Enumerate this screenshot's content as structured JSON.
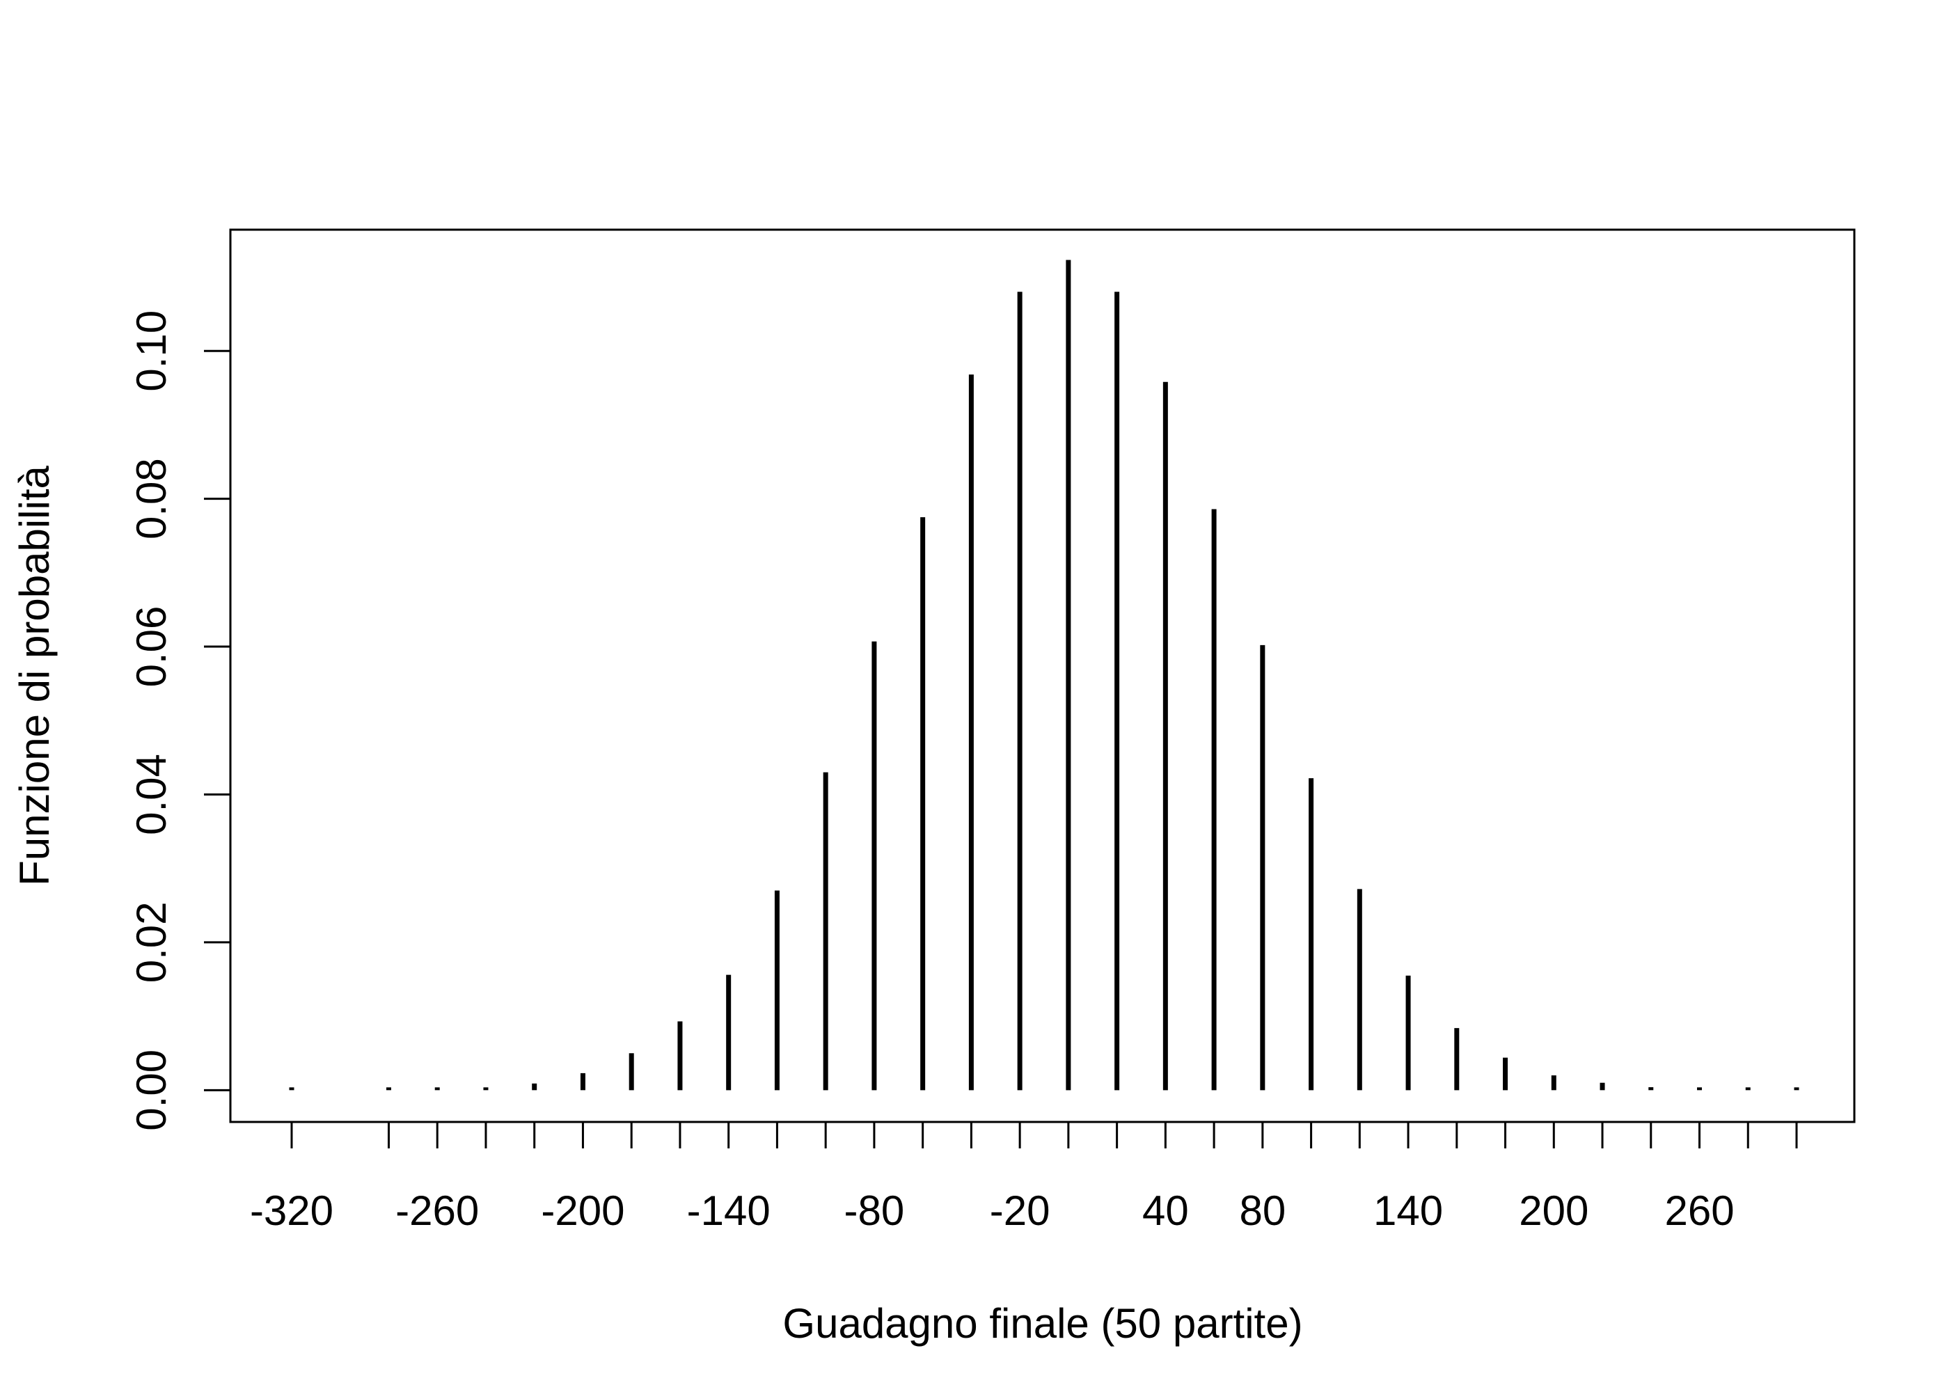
{
  "chart_data": {
    "type": "bar",
    "title": "",
    "xlabel": "Guadagno finale (50 partite)",
    "ylabel": "Funzione di probabilità",
    "x": [
      -320,
      -280,
      -260,
      -240,
      -220,
      -200,
      -180,
      -160,
      -140,
      -120,
      -100,
      -80,
      -60,
      -40,
      -20,
      0,
      20,
      40,
      60,
      80,
      100,
      120,
      140,
      160,
      180,
      200,
      220,
      240,
      260,
      280,
      300
    ],
    "values": [
      5e-05,
      5e-05,
      0.0001,
      0.0003,
      0.0009,
      0.0023,
      0.005,
      0.0093,
      0.0156,
      0.027,
      0.043,
      0.0607,
      0.0775,
      0.0968,
      0.108,
      0.1123,
      0.108,
      0.0958,
      0.0786,
      0.0602,
      0.0422,
      0.0272,
      0.0155,
      0.0084,
      0.0044,
      0.002,
      0.001,
      0.0004,
      0.0001,
      5e-05,
      5e-05
    ],
    "x_tick_labels": [
      "-320",
      "-260",
      "-200",
      "-140",
      "-80",
      "-20",
      "40",
      "80",
      "140",
      "200",
      "260"
    ],
    "x_tick_label_values": [
      -320,
      -260,
      -200,
      -140,
      -80,
      -20,
      40,
      80,
      140,
      200,
      260
    ],
    "y_ticks": [
      0.0,
      0.02,
      0.04,
      0.06,
      0.08,
      0.1
    ],
    "y_tick_labels": [
      "0.00",
      "0.02",
      "0.04",
      "0.06",
      "0.08",
      "0.10"
    ],
    "ylim": [
      -0.0043,
      0.1164
    ],
    "grid": false,
    "bar_color": "#000000"
  }
}
